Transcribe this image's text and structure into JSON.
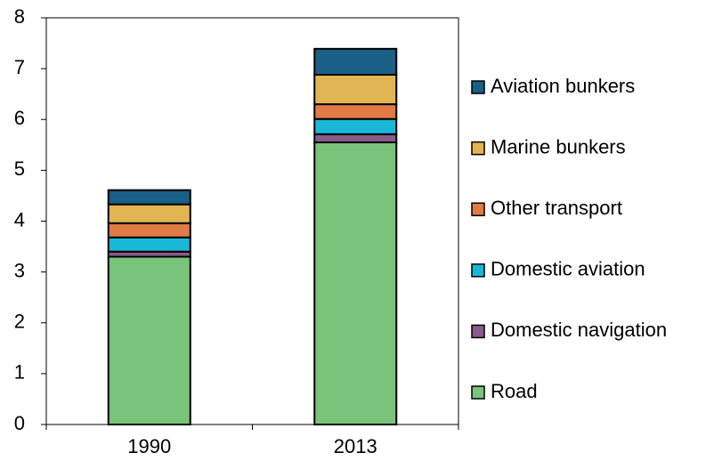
{
  "chart_data": {
    "type": "stacked_bar",
    "categories": [
      "1990",
      "2013"
    ],
    "series": [
      {
        "name": "Road",
        "color": "#77c47a",
        "values": [
          3.3,
          5.55
        ]
      },
      {
        "name": "Domestic navigation",
        "color": "#8b5a8c",
        "values": [
          0.1,
          0.16
        ]
      },
      {
        "name": "Domestic aviation",
        "color": "#1ab8d8",
        "values": [
          0.28,
          0.3
        ]
      },
      {
        "name": "Other transport",
        "color": "#e07b45",
        "values": [
          0.28,
          0.29
        ]
      },
      {
        "name": "Marine bunkers",
        "color": "#e2b553",
        "values": [
          0.37,
          0.58
        ]
      },
      {
        "name": "Aviation bunkers",
        "color": "#1a5f86",
        "values": [
          0.28,
          0.51
        ]
      }
    ],
    "ylim": [
      0,
      8
    ],
    "yticks": [
      0,
      1,
      2,
      3,
      4,
      5,
      6,
      7,
      8
    ],
    "legend": "right"
  }
}
